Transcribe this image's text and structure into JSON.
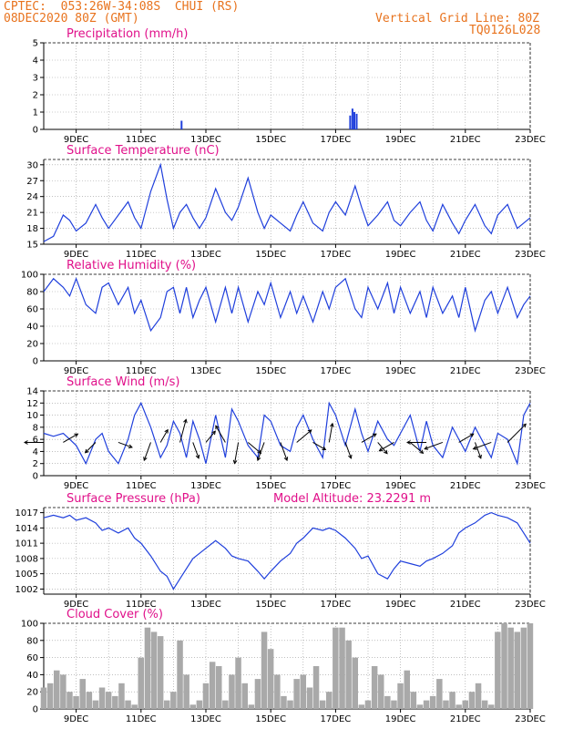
{
  "header": {
    "line1": "CPTEC:  053:26W-34:08S  CHUI (RS)",
    "line2": "08DEC2020 80Z (GMT)",
    "vgrid": "Vertical Grid Line: 80Z",
    "code": "TQ0126L028"
  },
  "x_ticks": [
    "9DEC",
    "11DEC",
    "13DEC",
    "15DEC",
    "17DEC",
    "19DEC",
    "21DEC",
    "23DEC"
  ],
  "colors": {
    "line": "#1f3fdc",
    "title": "#e0108a",
    "header": "#e8731e",
    "cloud": "#a9a9a9",
    "grid": "#999999"
  },
  "chart_data": [
    {
      "type": "bar",
      "title": "Precipitation (mm/h)",
      "ylim": [
        0,
        5
      ],
      "yticks": [
        "0",
        "1",
        "2",
        "3",
        "4",
        "5"
      ],
      "x": [
        12.25,
        17.45,
        17.52,
        17.58,
        17.65
      ],
      "values": [
        0.5,
        0.8,
        1.2,
        1.0,
        0.9
      ]
    },
    {
      "type": "line",
      "title": "Surface Temperature (nC)",
      "ylim": [
        15,
        31
      ],
      "yticks": [
        "15",
        "18",
        "21",
        "24",
        "27",
        "30"
      ],
      "x": [
        8.0,
        8.3,
        8.6,
        8.8,
        9.0,
        9.3,
        9.6,
        9.8,
        10.0,
        10.3,
        10.6,
        10.8,
        11.0,
        11.3,
        11.6,
        11.8,
        12.0,
        12.2,
        12.4,
        12.6,
        12.8,
        13.0,
        13.3,
        13.6,
        13.8,
        14.0,
        14.3,
        14.6,
        14.8,
        15.0,
        15.3,
        15.6,
        15.8,
        16.0,
        16.3,
        16.6,
        16.8,
        17.0,
        17.3,
        17.6,
        17.8,
        18.0,
        18.3,
        18.6,
        18.8,
        19.0,
        19.3,
        19.6,
        19.8,
        20.0,
        20.3,
        20.6,
        20.8,
        21.0,
        21.3,
        21.6,
        21.8,
        22.0,
        22.3,
        22.6,
        22.8,
        23.0
      ],
      "values": [
        15.5,
        16.5,
        20.5,
        19.5,
        17.5,
        19.0,
        22.5,
        20.0,
        18.0,
        20.5,
        23.0,
        20.0,
        18.0,
        25.0,
        30.0,
        23.5,
        18.0,
        21.0,
        22.5,
        20.0,
        18.0,
        20.0,
        25.5,
        21.0,
        19.5,
        22.0,
        27.5,
        21.0,
        18.0,
        20.5,
        19.0,
        17.5,
        20.5,
        23.0,
        19.0,
        17.5,
        21.0,
        23.0,
        20.5,
        26.0,
        22.0,
        18.5,
        20.5,
        23.0,
        19.5,
        18.5,
        21.0,
        23.0,
        19.5,
        17.5,
        22.5,
        19.0,
        17.0,
        19.5,
        22.5,
        18.5,
        17.0,
        20.5,
        22.5,
        18.0,
        19.0,
        20.0
      ]
    },
    {
      "type": "line",
      "title": "Relative Humidity (%)",
      "ylim": [
        0,
        100
      ],
      "yticks": [
        "0",
        "20",
        "40",
        "60",
        "80",
        "100"
      ],
      "x": [
        8.0,
        8.3,
        8.6,
        8.8,
        9.0,
        9.3,
        9.6,
        9.8,
        10.0,
        10.3,
        10.6,
        10.8,
        11.0,
        11.3,
        11.6,
        11.8,
        12.0,
        12.2,
        12.4,
        12.6,
        12.8,
        13.0,
        13.3,
        13.6,
        13.8,
        14.0,
        14.3,
        14.6,
        14.8,
        15.0,
        15.3,
        15.6,
        15.8,
        16.0,
        16.3,
        16.6,
        16.8,
        17.0,
        17.3,
        17.6,
        17.8,
        18.0,
        18.3,
        18.6,
        18.8,
        19.0,
        19.3,
        19.6,
        19.8,
        20.0,
        20.3,
        20.6,
        20.8,
        21.0,
        21.3,
        21.6,
        21.8,
        22.0,
        22.3,
        22.6,
        22.8,
        23.0
      ],
      "values": [
        80,
        95,
        85,
        75,
        95,
        65,
        55,
        85,
        90,
        65,
        85,
        55,
        70,
        35,
        50,
        80,
        85,
        55,
        85,
        50,
        70,
        85,
        45,
        85,
        55,
        85,
        45,
        80,
        65,
        90,
        50,
        80,
        55,
        75,
        45,
        80,
        60,
        85,
        95,
        60,
        50,
        85,
        60,
        90,
        55,
        85,
        55,
        80,
        50,
        85,
        55,
        75,
        50,
        85,
        35,
        70,
        80,
        55,
        85,
        50,
        65,
        75
      ]
    },
    {
      "type": "line",
      "title": "Surface Wind (m/s)",
      "ylim": [
        0,
        14
      ],
      "yticks": [
        "0",
        "2",
        "4",
        "6",
        "8",
        "10",
        "12",
        "14"
      ],
      "x": [
        8.0,
        8.3,
        8.6,
        8.8,
        9.0,
        9.3,
        9.6,
        9.8,
        10.0,
        10.3,
        10.6,
        10.8,
        11.0,
        11.3,
        11.6,
        11.8,
        12.0,
        12.2,
        12.4,
        12.6,
        12.8,
        13.0,
        13.3,
        13.6,
        13.8,
        14.0,
        14.3,
        14.6,
        14.8,
        15.0,
        15.3,
        15.6,
        15.8,
        16.0,
        16.3,
        16.6,
        16.8,
        17.0,
        17.3,
        17.6,
        17.8,
        18.0,
        18.3,
        18.6,
        18.8,
        19.0,
        19.3,
        19.6,
        19.8,
        20.0,
        20.3,
        20.6,
        20.8,
        21.0,
        21.3,
        21.6,
        21.8,
        22.0,
        22.3,
        22.6,
        22.8,
        23.0
      ],
      "values": [
        7,
        6.5,
        7,
        6,
        5,
        2,
        6,
        7,
        4,
        2,
        6,
        10,
        12,
        8,
        3,
        5,
        9,
        7,
        3,
        9,
        6,
        2,
        10,
        3,
        11,
        9,
        5,
        3,
        10,
        9,
        5,
        4,
        8,
        10,
        6,
        3,
        12,
        10,
        5,
        11,
        7,
        4,
        9,
        6,
        5,
        7,
        10,
        4,
        9,
        5,
        3,
        8,
        6,
        4,
        8,
        5,
        3,
        7,
        6,
        2,
        10,
        12
      ],
      "arrows": [
        {
          "x": 8.0,
          "dir": 270,
          "speed": 6
        },
        {
          "x": 8.6,
          "dir": 60,
          "speed": 5
        },
        {
          "x": 9.6,
          "dir": 225,
          "speed": 4
        },
        {
          "x": 10.3,
          "dir": 110,
          "speed": 4
        },
        {
          "x": 11.3,
          "dir": 200,
          "speed": 6
        },
        {
          "x": 11.6,
          "dir": 30,
          "speed": 4
        },
        {
          "x": 12.2,
          "dir": 15,
          "speed": 8
        },
        {
          "x": 12.6,
          "dir": 160,
          "speed": 5
        },
        {
          "x": 13.0,
          "dir": 40,
          "speed": 4
        },
        {
          "x": 13.6,
          "dir": 330,
          "speed": 6
        },
        {
          "x": 14.0,
          "dir": 190,
          "speed": 7
        },
        {
          "x": 14.3,
          "dir": 130,
          "speed": 5
        },
        {
          "x": 14.8,
          "dir": 200,
          "speed": 6
        },
        {
          "x": 15.3,
          "dir": 160,
          "speed": 6
        },
        {
          "x": 15.8,
          "dir": 50,
          "speed": 6
        },
        {
          "x": 16.3,
          "dir": 120,
          "speed": 4
        },
        {
          "x": 16.8,
          "dir": 10,
          "speed": 6
        },
        {
          "x": 17.3,
          "dir": 160,
          "speed": 5
        },
        {
          "x": 17.8,
          "dir": 60,
          "speed": 5
        },
        {
          "x": 18.3,
          "dir": 140,
          "speed": 4
        },
        {
          "x": 18.8,
          "dir": 240,
          "speed": 5
        },
        {
          "x": 19.3,
          "dir": 130,
          "speed": 5
        },
        {
          "x": 19.8,
          "dir": 270,
          "speed": 6
        },
        {
          "x": 20.3,
          "dir": 250,
          "speed": 6
        },
        {
          "x": 20.8,
          "dir": 60,
          "speed": 5
        },
        {
          "x": 21.3,
          "dir": 160,
          "speed": 5
        },
        {
          "x": 21.8,
          "dir": 250,
          "speed": 6
        },
        {
          "x": 22.3,
          "dir": 45,
          "speed": 9
        }
      ]
    },
    {
      "type": "line",
      "title": "Surface Pressure (hPa)",
      "subtitle": "Model Altitude: 23.2291 m",
      "ylim": [
        1001,
        1018
      ],
      "yticks": [
        "1002",
        "1005",
        "1008",
        "1011",
        "1014",
        "1017"
      ],
      "x": [
        8.0,
        8.3,
        8.6,
        8.8,
        9.0,
        9.3,
        9.6,
        9.8,
        10.0,
        10.3,
        10.6,
        10.8,
        11.0,
        11.3,
        11.6,
        11.8,
        12.0,
        12.2,
        12.4,
        12.6,
        12.8,
        13.0,
        13.3,
        13.6,
        13.8,
        14.0,
        14.3,
        14.6,
        14.8,
        15.0,
        15.3,
        15.6,
        15.8,
        16.0,
        16.3,
        16.6,
        16.8,
        17.0,
        17.3,
        17.6,
        17.8,
        18.0,
        18.3,
        18.6,
        18.8,
        19.0,
        19.3,
        19.6,
        19.8,
        20.0,
        20.3,
        20.6,
        20.8,
        21.0,
        21.3,
        21.6,
        21.8,
        22.0,
        22.3,
        22.6,
        22.8,
        23.0
      ],
      "values": [
        1016,
        1016.5,
        1016,
        1016.5,
        1015.5,
        1016,
        1015,
        1013.5,
        1014,
        1013,
        1014,
        1012,
        1011,
        1008.5,
        1005.5,
        1004.5,
        1002,
        1004,
        1006,
        1008,
        1009,
        1010,
        1011.5,
        1010,
        1008.5,
        1008,
        1007.5,
        1005.5,
        1004,
        1005.5,
        1007.5,
        1009,
        1011,
        1012,
        1014,
        1013.5,
        1014,
        1013.5,
        1012,
        1010,
        1008,
        1008.5,
        1005,
        1004,
        1006,
        1007.5,
        1007,
        1006.5,
        1007.5,
        1008,
        1009,
        1010.5,
        1013,
        1014,
        1015,
        1016.5,
        1017,
        1016.5,
        1016,
        1015,
        1013,
        1011
      ]
    },
    {
      "type": "bar",
      "title": "Cloud Cover (%)",
      "ylim": [
        0,
        100
      ],
      "yticks": [
        "0",
        "20",
        "40",
        "60",
        "80",
        "100"
      ],
      "x": [
        8.0,
        8.2,
        8.4,
        8.6,
        8.8,
        9.0,
        9.2,
        9.4,
        9.6,
        9.8,
        10.0,
        10.2,
        10.4,
        10.6,
        10.8,
        11.0,
        11.2,
        11.4,
        11.6,
        11.8,
        12.0,
        12.2,
        12.4,
        12.6,
        12.8,
        13.0,
        13.2,
        13.4,
        13.6,
        13.8,
        14.0,
        14.2,
        14.4,
        14.6,
        14.8,
        15.0,
        15.2,
        15.4,
        15.6,
        15.8,
        16.0,
        16.2,
        16.4,
        16.6,
        16.8,
        17.0,
        17.2,
        17.4,
        17.6,
        17.8,
        18.0,
        18.2,
        18.4,
        18.6,
        18.8,
        19.0,
        19.2,
        19.4,
        19.6,
        19.8,
        20.0,
        20.2,
        20.4,
        20.6,
        20.8,
        21.0,
        21.2,
        21.4,
        21.6,
        21.8,
        22.0,
        22.2,
        22.4,
        22.6,
        22.8,
        23.0
      ],
      "values": [
        25,
        30,
        45,
        40,
        20,
        15,
        35,
        20,
        10,
        25,
        20,
        15,
        30,
        10,
        5,
        60,
        95,
        90,
        85,
        10,
        20,
        80,
        40,
        5,
        10,
        30,
        55,
        50,
        10,
        40,
        60,
        30,
        5,
        35,
        90,
        70,
        40,
        15,
        10,
        35,
        40,
        25,
        50,
        10,
        20,
        95,
        95,
        80,
        60,
        5,
        10,
        50,
        40,
        15,
        10,
        30,
        45,
        20,
        5,
        10,
        15,
        35,
        10,
        20,
        5,
        10,
        20,
        30,
        10,
        5,
        90,
        100,
        95,
        90,
        95,
        100
      ]
    }
  ]
}
